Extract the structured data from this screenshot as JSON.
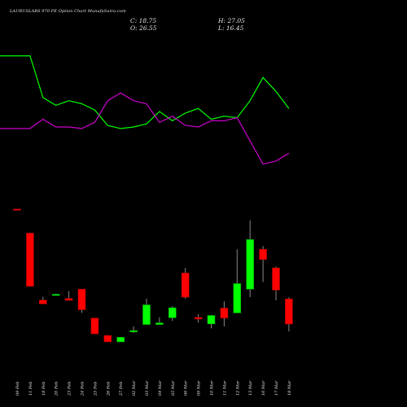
{
  "header": {
    "title": "LAURUSLABS 970  PE Option  Chart MunafaSutra.com",
    "open": "O: 26.55",
    "close": "C: 18.75",
    "high": "H: 27.05",
    "low": "L: 16.45"
  },
  "chart_data": {
    "type": "candlestick",
    "dates": [
      "09 Feb",
      "11 Feb",
      "18 Feb",
      "20 Feb",
      "23 Feb",
      "24 Feb",
      "25 Feb",
      "26 Feb",
      "27 Feb",
      "02 Mar",
      "03 Mar",
      "04 Mar",
      "05 Mar",
      "06 Mar",
      "09 Mar",
      "10 Mar",
      "11 Mar",
      "12 Mar",
      "13 Mar",
      "16 Mar",
      "17 Mar",
      "18 Mar"
    ],
    "candles": [
      {
        "date": "09 Feb",
        "open": 54.5,
        "high": 54.5,
        "low": 54.3,
        "close": 54.3
      },
      {
        "date": "11 Feb",
        "open": 47.0,
        "high": 47.2,
        "low": 30.5,
        "close": 30.5
      },
      {
        "date": "18 Feb",
        "open": 26.2,
        "high": 27.2,
        "low": 25.0,
        "close": 25.0
      },
      {
        "date": "20 Feb",
        "open": 28.0,
        "high": 28.2,
        "low": 28.0,
        "close": 28.0
      },
      {
        "date": "23 Feb",
        "open": 26.7,
        "high": 29.0,
        "low": 26.1,
        "close": 26.1
      },
      {
        "date": "24 Feb",
        "open": 29.6,
        "high": 29.6,
        "low": 22.2,
        "close": 23.2
      },
      {
        "date": "25 Feb",
        "open": 20.6,
        "high": 20.6,
        "low": 15.7,
        "close": 15.7
      },
      {
        "date": "26 Feb",
        "open": 15.2,
        "high": 15.2,
        "low": 13.2,
        "close": 13.2
      },
      {
        "date": "27 Feb",
        "open": 13.2,
        "high": 14.6,
        "low": 13.2,
        "close": 14.6
      },
      {
        "date": "02 Mar",
        "open": 16.3,
        "high": 18.0,
        "low": 16.0,
        "close": 16.7
      },
      {
        "date": "03 Mar",
        "open": 18.6,
        "high": 26.6,
        "low": 18.6,
        "close": 24.7
      },
      {
        "date": "04 Mar",
        "open": 18.6,
        "high": 20.8,
        "low": 18.6,
        "close": 19.1
      },
      {
        "date": "05 Mar",
        "open": 20.7,
        "high": 24.3,
        "low": 19.7,
        "close": 23.8
      },
      {
        "date": "06 Mar",
        "open": 34.6,
        "high": 36.2,
        "low": 26.6,
        "close": 27.1
      },
      {
        "date": "09 Mar",
        "open": 20.8,
        "high": 21.8,
        "low": 19.2,
        "close": 20.3
      },
      {
        "date": "10 Mar",
        "open": 18.8,
        "high": 21.6,
        "low": 17.4,
        "close": 21.4
      },
      {
        "date": "11 Mar",
        "open": 23.7,
        "high": 25.8,
        "low": 18.0,
        "close": 20.6
      },
      {
        "date": "12 Mar",
        "open": 22.2,
        "high": 42.0,
        "low": 22.2,
        "close": 31.3
      },
      {
        "date": "13 Mar",
        "open": 29.6,
        "high": 51.0,
        "low": 27.1,
        "close": 45.0
      },
      {
        "date": "16 Mar",
        "open": 42.0,
        "high": 43.0,
        "low": 31.8,
        "close": 38.8
      },
      {
        "date": "17 Mar",
        "open": 36.2,
        "high": 36.6,
        "low": 26.1,
        "close": 29.3
      },
      {
        "date": "18 Mar",
        "open": 26.55,
        "high": 27.05,
        "low": 16.45,
        "close": 18.75
      }
    ],
    "indicator_lines": [
      {
        "color": "#00ff00",
        "values": [
          86,
          86,
          59,
          54,
          57,
          55,
          51,
          41,
          39,
          40,
          42,
          50,
          44,
          49,
          52,
          45,
          47,
          46,
          57,
          72,
          63,
          52
        ]
      },
      {
        "color": "#cc00cc",
        "values": [
          39,
          39,
          45,
          40,
          40,
          39,
          43,
          57,
          62,
          57,
          55,
          43,
          47,
          41,
          40,
          44,
          44,
          46,
          31,
          16,
          18,
          23
        ]
      }
    ],
    "colors": {
      "up": "#00ff00",
      "down": "#ff0000",
      "background": "#000000",
      "label": "#e8e8e8"
    }
  }
}
